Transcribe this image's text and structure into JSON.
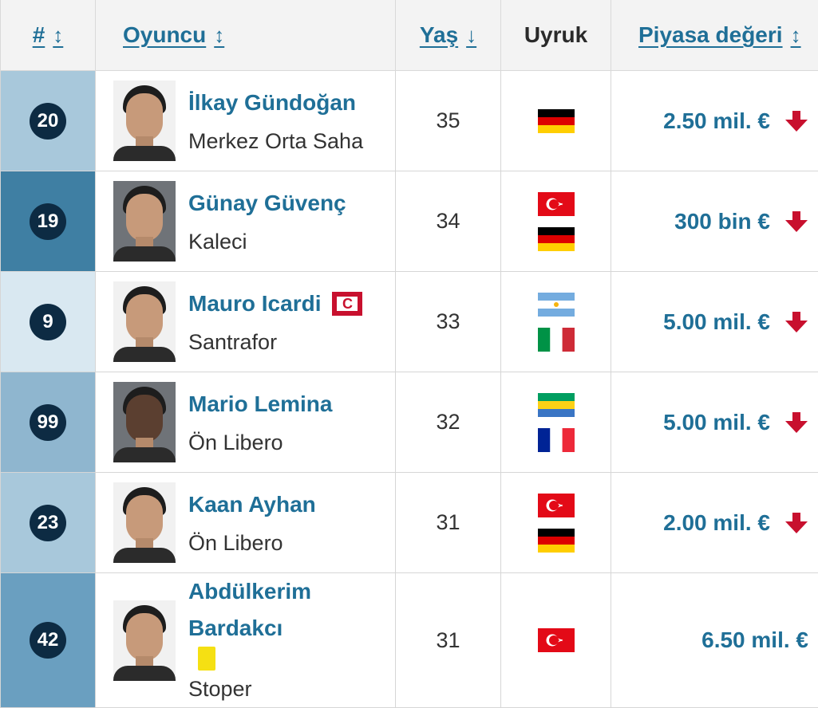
{
  "header": {
    "num": "#",
    "player": "Oyuncu",
    "age": "Yaş",
    "nationality": "Uyruk",
    "market_value": "Piyasa değeri",
    "sort_both_icon": "up-down-arrow",
    "sort_desc_icon": "down-arrow"
  },
  "colors": {
    "link": "#1f6f97",
    "badge": "#0d2b43",
    "value_down": "#c8102e",
    "row_stripes": [
      "#a8c8db",
      "#3f7fa3",
      "#d9e8f1",
      "#8fb6cf",
      "#a8c8db",
      "#6a9fc0"
    ]
  },
  "players": [
    {
      "number": "20",
      "name": "İlkay Gündoğan",
      "position": "Merkez Orta Saha",
      "age": "35",
      "nationalities": [
        "germany"
      ],
      "value": "2.50 mil. €",
      "trend": "down"
    },
    {
      "number": "19",
      "name": "Günay Güvenç",
      "position": "Kaleci",
      "age": "34",
      "nationalities": [
        "turkey",
        "germany"
      ],
      "value": "300 bin €",
      "trend": "down"
    },
    {
      "number": "9",
      "name": "Mauro Icardi",
      "position": "Santrafor",
      "age": "33",
      "nationalities": [
        "argentina",
        "italy"
      ],
      "value": "5.00 mil. €",
      "trend": "down",
      "captain_label": "C"
    },
    {
      "number": "99",
      "name": "Mario Lemina",
      "position": "Ön Libero",
      "age": "32",
      "nationalities": [
        "gabon",
        "france"
      ],
      "value": "5.00 mil. €",
      "trend": "down"
    },
    {
      "number": "23",
      "name": "Kaan Ayhan",
      "position": "Ön Libero",
      "age": "31",
      "nationalities": [
        "turkey",
        "germany"
      ],
      "value": "2.00 mil. €",
      "trend": "down"
    },
    {
      "number": "42",
      "name": "Abdülkerim Bardakcı",
      "position": "Stoper",
      "age": "31",
      "nationalities": [
        "turkey"
      ],
      "value": "6.50 mil. €",
      "trend": "none",
      "yellow_card": true
    }
  ]
}
